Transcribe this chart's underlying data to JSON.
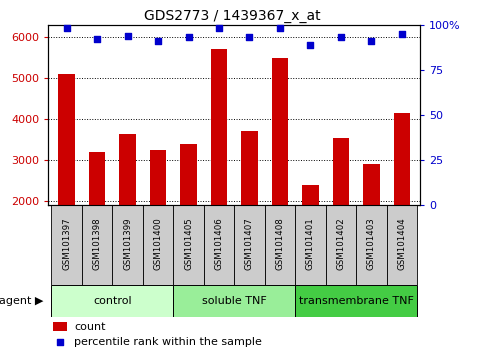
{
  "title": "GDS2773 / 1439367_x_at",
  "samples": [
    "GSM101397",
    "GSM101398",
    "GSM101399",
    "GSM101400",
    "GSM101405",
    "GSM101406",
    "GSM101407",
    "GSM101408",
    "GSM101401",
    "GSM101402",
    "GSM101403",
    "GSM101404"
  ],
  "counts": [
    5100,
    3200,
    3650,
    3250,
    3400,
    5700,
    3700,
    5500,
    2400,
    3550,
    2900,
    4150
  ],
  "percentiles": [
    98,
    92,
    94,
    91,
    93,
    98,
    93,
    98,
    89,
    93,
    91,
    95
  ],
  "bar_color": "#cc0000",
  "dot_color": "#0000cc",
  "ylim_left": [
    1900,
    6300
  ],
  "ylim_right": [
    0,
    100
  ],
  "yticks_left": [
    2000,
    3000,
    4000,
    5000,
    6000
  ],
  "yticks_right": [
    0,
    25,
    50,
    75,
    100
  ],
  "groups": [
    {
      "label": "control",
      "start": 0,
      "end": 4,
      "color": "#ccffcc"
    },
    {
      "label": "soluble TNF",
      "start": 4,
      "end": 8,
      "color": "#99ee99"
    },
    {
      "label": "transmembrane TNF",
      "start": 8,
      "end": 12,
      "color": "#44cc44"
    }
  ],
  "agent_label": "agent",
  "legend_count_label": "count",
  "legend_pct_label": "percentile rank within the sample",
  "title_fontsize": 10,
  "tick_fontsize": 8,
  "bar_width": 0.55,
  "grid_color": "#000000",
  "background_sample": "#cccccc"
}
